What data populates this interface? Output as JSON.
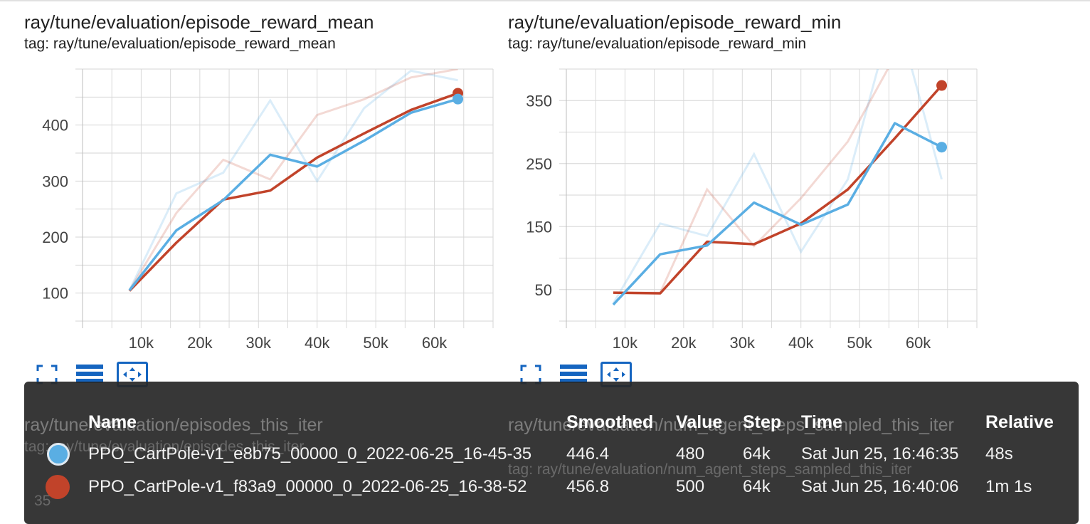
{
  "colors": {
    "series_blue": "#5aaee3",
    "series_red": "#c1432a",
    "tooltip_bg": "#2b2b2b"
  },
  "charts": [
    {
      "title": "ray/tune/evaluation/episode_reward_mean",
      "tag": "tag: ray/tune/evaluation/episode_reward_mean",
      "tools": [
        "fullscreen-icon",
        "data-table-icon",
        "fit-domain-icon"
      ]
    },
    {
      "title": "ray/tune/evaluation/episode_reward_min",
      "tag": "tag: ray/tune/evaluation/episode_reward_min",
      "tools": [
        "fullscreen-icon",
        "data-table-icon",
        "fit-domain-icon"
      ]
    }
  ],
  "chart_data": [
    {
      "type": "line",
      "title": "ray/tune/evaluation/episode_reward_mean",
      "xlabel": "",
      "ylabel": "",
      "xlim": [
        0,
        70000
      ],
      "ylim": [
        50,
        500
      ],
      "x_ticks": [
        10000,
        20000,
        30000,
        40000,
        50000,
        60000
      ],
      "x_tick_labels": [
        "10k",
        "20k",
        "30k",
        "40k",
        "50k",
        "60k"
      ],
      "y_ticks": [
        100,
        200,
        300,
        400
      ],
      "y_tick_labels": [
        "100",
        "200",
        "300",
        "400"
      ],
      "grid": true,
      "series": [
        {
          "name": "PPO_CartPole-v1_e8b75_00000_0_2022-06-25_16-45-35",
          "color": "#5aaee3",
          "x": [
            8000,
            16000,
            24000,
            32000,
            40000,
            48000,
            56000,
            64000
          ],
          "raw": [
            105,
            278,
            315,
            444,
            300,
            430,
            497,
            480
          ],
          "smoothed": [
            105,
            212,
            266,
            347,
            326,
            372,
            422,
            446.4
          ]
        },
        {
          "name": "PPO_CartPole-v1_f83a9_00000_0_2022-06-25_16-38-52",
          "color": "#c1432a",
          "x": [
            8000,
            16000,
            24000,
            32000,
            40000,
            48000,
            56000,
            64000
          ],
          "raw": [
            105,
            243,
            338,
            303,
            418,
            446,
            485,
            500
          ],
          "smoothed": [
            104,
            190,
            267,
            283,
            342,
            385,
            427,
            456.8
          ]
        }
      ]
    },
    {
      "type": "line",
      "title": "ray/tune/evaluation/episode_reward_min",
      "xlabel": "",
      "ylabel": "",
      "xlim": [
        0,
        70000
      ],
      "ylim": [
        0,
        400
      ],
      "x_ticks": [
        10000,
        20000,
        30000,
        40000,
        50000,
        60000
      ],
      "x_tick_labels": [
        "10k",
        "20k",
        "30k",
        "40k",
        "50k",
        "60k"
      ],
      "y_ticks": [
        50,
        150,
        250,
        350
      ],
      "y_tick_labels": [
        "50",
        "150",
        "250",
        "350"
      ],
      "grid": true,
      "series": [
        {
          "name": "PPO_CartPole-v1_e8b75_00000_0_2022-06-25_16-45-35",
          "color": "#5aaee3",
          "x": [
            8000,
            16000,
            24000,
            32000,
            40000,
            48000,
            56000,
            64000
          ],
          "raw": [
            28,
            155,
            135,
            265,
            110,
            225,
            500,
            225
          ],
          "smoothed": [
            26,
            106,
            120,
            188,
            153,
            185,
            314,
            276
          ]
        },
        {
          "name": "PPO_CartPole-v1_f83a9_00000_0_2022-06-25_16-38-52",
          "color": "#c1432a",
          "x": [
            8000,
            16000,
            24000,
            32000,
            40000,
            48000,
            56000,
            64000
          ],
          "raw": [
            45,
            45,
            209,
            119,
            195,
            285,
            420,
            500
          ],
          "smoothed": [
            45,
            44,
            126,
            122,
            155,
            209,
            290,
            374
          ]
        }
      ]
    }
  ],
  "tooltip": {
    "headers": {
      "name": "Name",
      "smoothed": "Smoothed",
      "value": "Value",
      "step": "Step",
      "time": "Time",
      "relative": "Relative"
    },
    "rows": [
      {
        "name": "PPO_CartPole-v1_e8b75_00000_0_2022-06-25_16-45-35",
        "smoothed": "446.4",
        "value": "480",
        "step": "64k",
        "time": "Sat Jun 25, 16:46:35",
        "relative": "48s",
        "color": "#5aaee3"
      },
      {
        "name": "PPO_CartPole-v1_f83a9_00000_0_2022-06-25_16-38-52",
        "smoothed": "456.8",
        "value": "500",
        "step": "64k",
        "time": "Sat Jun 25, 16:40:06",
        "relative": "1m 1s",
        "color": "#c1432a"
      }
    ]
  },
  "behind_tooltip": {
    "left_title": "ray/tune/evaluation/episodes_this_iter",
    "left_tag": "tag: ray/tune/evaluation/episodes_this_iter",
    "right_title": "ray/tune/evaluation/num_agent_steps_sampled_this_iter",
    "right_tag": "tag: ray/tune/evaluation/num_agent_steps_sampled_this_iter",
    "left_ytick": "35"
  }
}
